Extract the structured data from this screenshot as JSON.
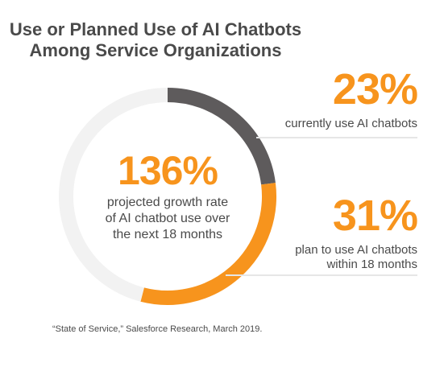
{
  "chart_data": {
    "type": "pie",
    "title_lines": [
      "Use or Planned Use of AI Chatbots",
      "Among Service Organizations"
    ],
    "slices": [
      {
        "label": "currently use AI chatbots",
        "value": 23,
        "color": "#5e5b5c"
      },
      {
        "label": "plan to use AI chatbots within 18 months",
        "value": 31,
        "color": "#f7941d"
      },
      {
        "label": "",
        "value": 46,
        "color": "#f2f2f2"
      }
    ],
    "center": {
      "value_text": "136%",
      "desc_lines": [
        "projected growth rate",
        "of AI chatbot use over",
        "the next 18 months"
      ]
    },
    "callouts": [
      {
        "value_text": "23%",
        "desc_lines": [
          "currently use AI chatbots"
        ]
      },
      {
        "value_text": "31%",
        "desc_lines": [
          "plan to use AI chatbots",
          "within 18 months"
        ]
      }
    ],
    "source": "“State of Service,” Salesforce Research, March 2019."
  },
  "colors": {
    "accent": "#f7941d",
    "dark_segment": "#5e5b5c",
    "track": "#f2f2f2",
    "text": "#4a4a4a"
  }
}
